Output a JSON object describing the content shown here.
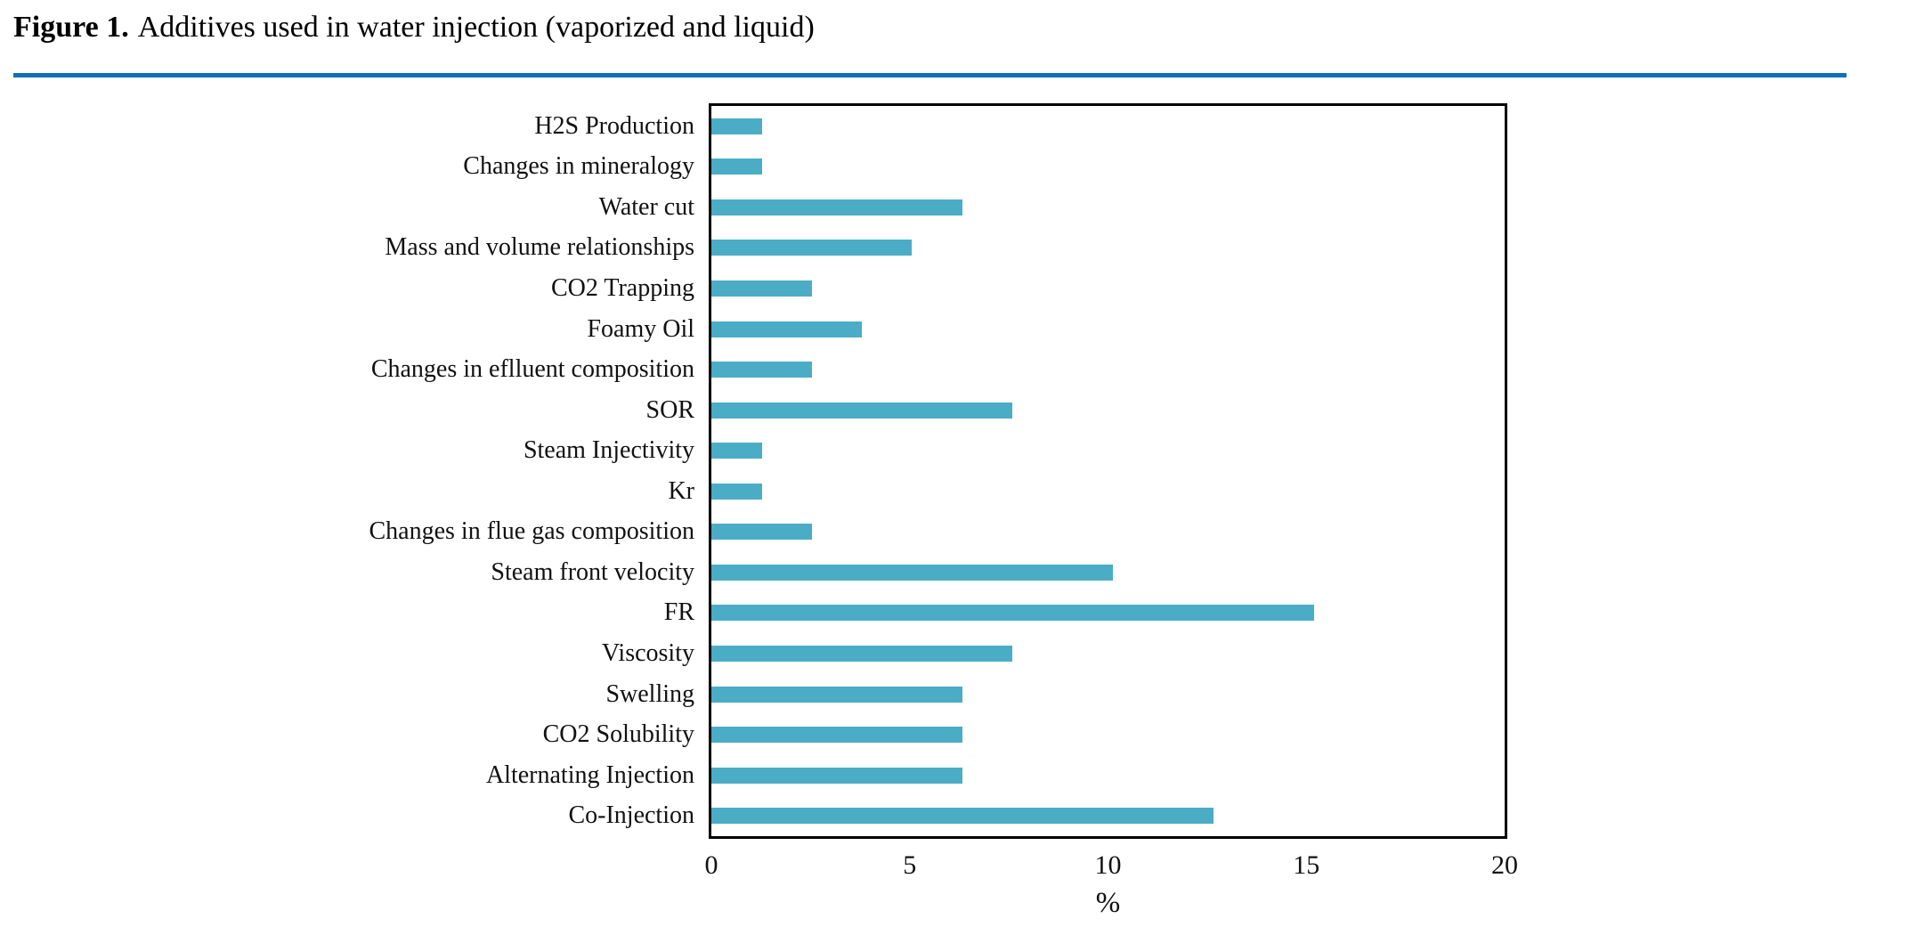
{
  "figure": {
    "label": "Figure 1.",
    "caption": "Additives used in water injection (vaporized and liquid)"
  },
  "colors": {
    "bar": "#4BACC6",
    "rule": "#1070B8",
    "axis": "#000000"
  },
  "chart_data": {
    "type": "bar",
    "orientation": "horizontal",
    "title": "Figure 1. Additives used in water injection (vaporized and liquid)",
    "categories": [
      "H2S Production",
      "Changes in mineralogy",
      "Water cut",
      "Mass and volume relationships",
      "CO2 Trapping",
      "Foamy Oil",
      "Changes in eflluent composition",
      "SOR",
      "Steam Injectivity",
      "Kr",
      "Changes in flue gas composition",
      "Steam front velocity",
      "FR",
      "Viscosity",
      "Swelling",
      "CO2 Solubility",
      "Alternating Injection",
      "Co-Injection"
    ],
    "values": [
      1.27,
      1.27,
      6.33,
      5.06,
      2.53,
      3.8,
      2.53,
      7.59,
      1.27,
      1.27,
      2.53,
      10.13,
      15.19,
      7.59,
      6.33,
      6.33,
      6.33,
      12.66
    ],
    "xlabel": "%",
    "xlim": [
      0,
      20
    ],
    "xticks": [
      0,
      5,
      10,
      15,
      20
    ],
    "grid": false,
    "legend_position": "none"
  }
}
